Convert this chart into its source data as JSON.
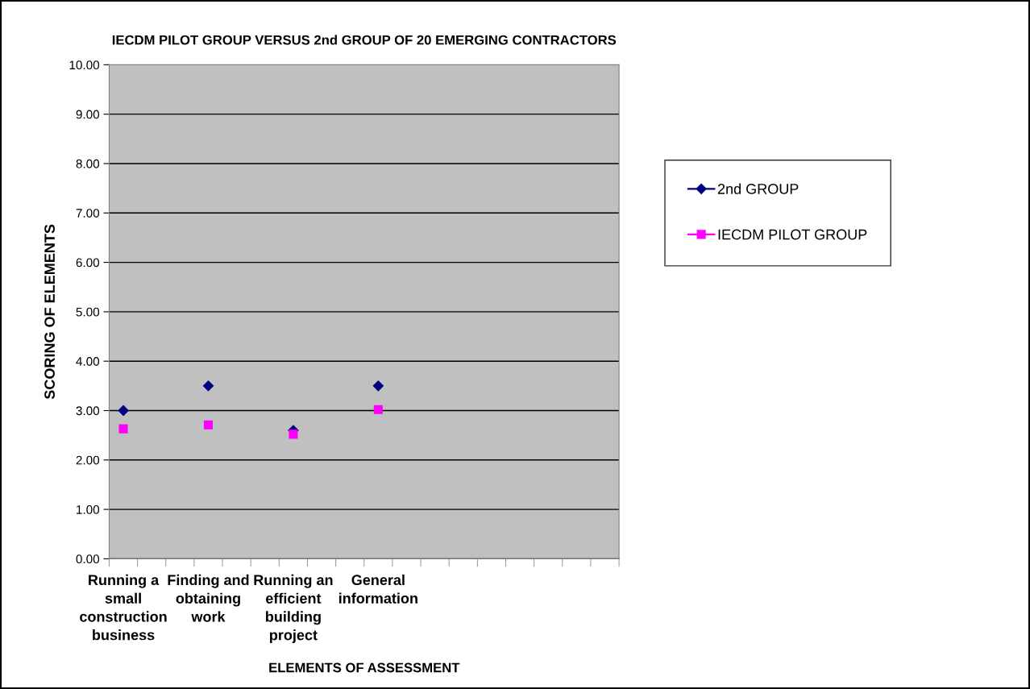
{
  "chart_data": {
    "type": "scatter",
    "title": "IECDM PILOT GROUP VERSUS 2nd GROUP OF 20 EMERGING CONTRACTORS",
    "xlabel": "ELEMENTS OF ASSESSMENT",
    "ylabel": "SCORING OF ELEMENTS",
    "categories": [
      "Running a\nsmall\nconstruction\nbusiness",
      null,
      null,
      "Finding and\nobtaining\nwork",
      null,
      null,
      "Running an\nefficient\nbuilding\nproject",
      null,
      null,
      "General\ninformation",
      null,
      null,
      null,
      null,
      null,
      null,
      null,
      null
    ],
    "series": [
      {
        "name": "2nd GROUP",
        "color": "#000080",
        "marker": "diamond",
        "values": [
          3.0,
          null,
          null,
          3.5,
          null,
          null,
          2.6,
          null,
          null,
          3.5,
          null,
          null,
          null,
          null,
          null,
          null,
          null,
          null
        ]
      },
      {
        "name": "IECDM PILOT GROUP",
        "color": "#ff00ff",
        "marker": "square",
        "values": [
          2.63,
          null,
          null,
          2.71,
          null,
          null,
          2.52,
          null,
          null,
          3.02,
          null,
          null,
          null,
          null,
          null,
          null,
          null,
          null
        ]
      }
    ],
    "ylim": [
      0,
      10
    ],
    "yticks": [
      {
        "value": 0,
        "label": "0.00"
      },
      {
        "value": 1,
        "label": "1.00"
      },
      {
        "value": 2,
        "label": "2.00"
      },
      {
        "value": 3,
        "label": "3.00"
      },
      {
        "value": 4,
        "label": "4.00"
      },
      {
        "value": 5,
        "label": "5.00"
      },
      {
        "value": 6,
        "label": "6.00"
      },
      {
        "value": 7,
        "label": "7.00"
      },
      {
        "value": 8,
        "label": "8.00"
      },
      {
        "value": 9,
        "label": "9.00"
      },
      {
        "value": 10,
        "label": "10.00"
      }
    ],
    "grid": "y",
    "legend": "right"
  }
}
